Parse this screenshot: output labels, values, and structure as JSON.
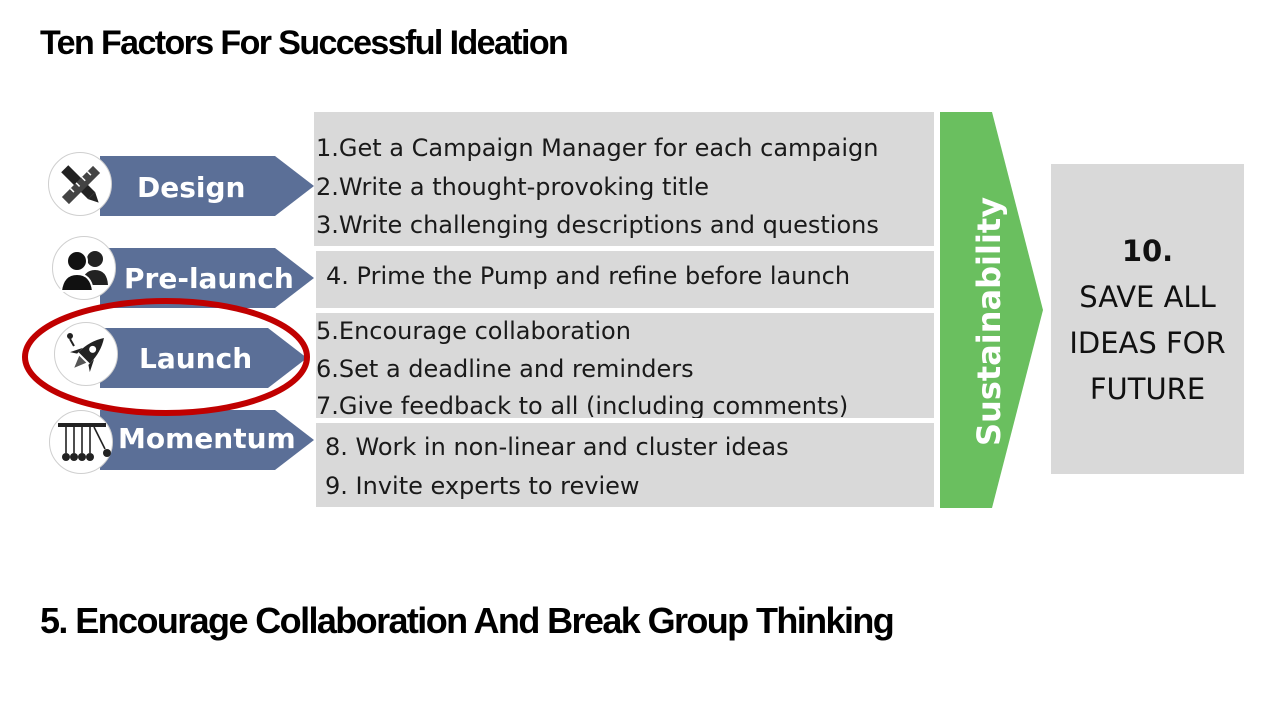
{
  "title": "Ten Factors For Successful Ideation",
  "subtitle": "5. Encourage Collaboration And Break Group Thinking",
  "phases": [
    {
      "label": "Design",
      "icon": "pencil-ruler-icon"
    },
    {
      "label": "Pre-launch",
      "icon": "people-icon"
    },
    {
      "label": "Launch",
      "icon": "rocket-icon",
      "highlighted": true
    },
    {
      "label": "Momentum",
      "icon": "newtons-cradle-icon"
    }
  ],
  "groups": [
    {
      "items": [
        "1.Get a Campaign Manager for each campaign",
        "2.Write a thought-provoking title",
        "3.Write challenging descriptions and questions"
      ]
    },
    {
      "items": [
        "4. Prime the Pump and refine before launch"
      ]
    },
    {
      "items": [
        "5.Encourage collaboration",
        "6.Set a deadline and reminders",
        "7.Give feedback to all (including comments)"
      ]
    },
    {
      "items": [
        "8. Work in non-linear and cluster ideas",
        "9. Invite experts to review"
      ]
    }
  ],
  "sustainability": "Sustainability",
  "save": {
    "number": "10.",
    "lines": [
      "SAVE ALL",
      "IDEAS FOR",
      "FUTURE"
    ]
  },
  "colors": {
    "phase_arrow": "#5b6f97",
    "sustain_arrow": "#6abf5f",
    "box": "#d9d9d9",
    "highlight_ring": "#c00000"
  }
}
